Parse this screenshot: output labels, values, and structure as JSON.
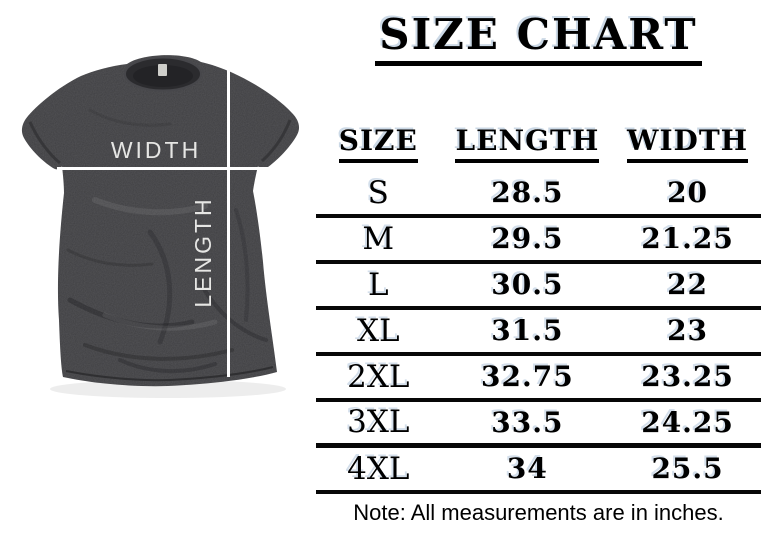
{
  "title": "SIZE CHART",
  "diagram": {
    "width_label": "WIDTH",
    "length_label": "LENGTH"
  },
  "table": {
    "headers": [
      "SIZE",
      "LENGTH",
      "WIDTH"
    ],
    "rows": [
      {
        "size": "S",
        "length": "28.5",
        "width": "20"
      },
      {
        "size": "M",
        "length": "29.5",
        "width": "21.25"
      },
      {
        "size": "L",
        "length": "30.5",
        "width": "22"
      },
      {
        "size": "XL",
        "length": "31.5",
        "width": "23"
      },
      {
        "size": "2XL",
        "length": "32.75",
        "width": "23.25"
      },
      {
        "size": "3XL",
        "length": "33.5",
        "width": "24.25"
      },
      {
        "size": "4XL",
        "length": "34",
        "width": "25.5"
      }
    ]
  },
  "note": "Note: All measurements are in inches.",
  "chart_data": {
    "type": "table",
    "title": "SIZE CHART",
    "columns": [
      "SIZE",
      "LENGTH",
      "WIDTH"
    ],
    "rows": [
      [
        "S",
        28.5,
        20
      ],
      [
        "M",
        29.5,
        21.25
      ],
      [
        "L",
        30.5,
        22
      ],
      [
        "XL",
        31.5,
        23
      ],
      [
        "2XL",
        32.75,
        23.25
      ],
      [
        "3XL",
        33.5,
        24.25
      ],
      [
        "4XL",
        34,
        25.5
      ]
    ],
    "note": "Note: All measurements are in inches."
  },
  "colors": {
    "shirt": "#3f3f42",
    "text": "#000000",
    "text_shadow": "#ccd9e6",
    "measure_line": "#ffffff",
    "background": "#ffffff"
  }
}
